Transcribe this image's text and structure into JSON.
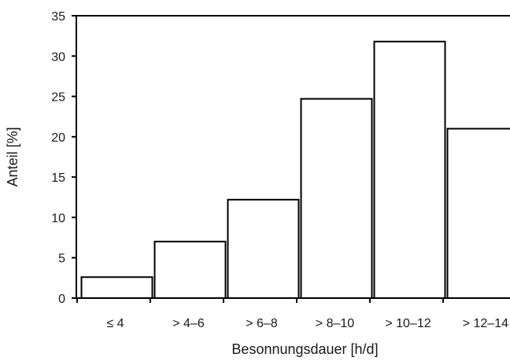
{
  "chart_data": {
    "type": "bar",
    "categories": [
      "≤ 4",
      "> 4–6",
      "> 6–8",
      "> 8–10",
      "> 10–12",
      "> 12–14"
    ],
    "values": [
      2.6,
      7.0,
      12.2,
      24.7,
      31.8,
      21.0
    ],
    "xlabel": "Besonnungsdauer [h/d]",
    "ylabel": "Anteil [%]",
    "ylim": [
      0,
      35
    ],
    "yticks": [
      0,
      5,
      10,
      15,
      20,
      25,
      30,
      35
    ],
    "grid": false,
    "colors": {
      "bar_fill": "#ffffff",
      "bar_stroke": "#000000"
    }
  }
}
